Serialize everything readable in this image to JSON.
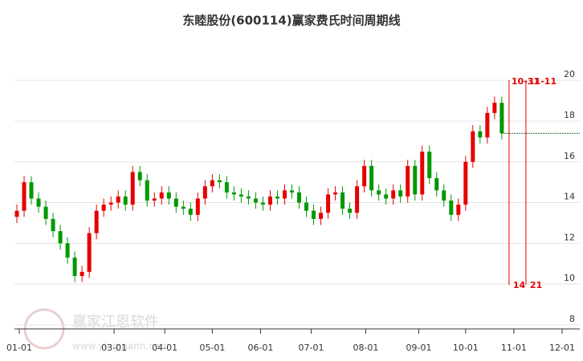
{
  "chart_data": {
    "type": "candlestick",
    "title": "东睦股份(600114)赢家费氏时间周期线",
    "x": [
      0,
      3,
      6,
      9,
      12,
      15,
      18,
      21,
      24,
      27,
      30,
      33,
      36,
      39,
      42,
      45,
      48,
      51,
      54,
      57,
      60,
      63,
      66,
      69,
      72,
      75,
      78,
      81,
      84,
      87,
      90,
      93,
      96,
      99,
      102,
      105,
      108,
      111,
      114,
      117,
      120,
      123,
      126,
      129,
      132,
      135,
      138,
      141,
      144,
      147,
      150,
      153,
      156,
      159,
      162,
      165,
      168,
      171,
      174,
      177,
      180,
      183,
      186,
      189,
      192,
      195,
      198,
      201
    ],
    "open": [
      13.3,
      13.6,
      15.0,
      14.2,
      13.8,
      13.2,
      12.6,
      12.0,
      11.3,
      10.4,
      10.6,
      12.5,
      13.6,
      13.9,
      14.0,
      14.3,
      13.9,
      15.5,
      15.1,
      14.1,
      14.2,
      14.5,
      14.2,
      13.8,
      13.7,
      13.4,
      14.2,
      14.8,
      15.1,
      15.0,
      14.5,
      14.4,
      14.3,
      14.2,
      14.0,
      13.9,
      14.3,
      14.2,
      14.6,
      14.5,
      14.0,
      13.6,
      13.2,
      13.5,
      14.4,
      14.5,
      13.7,
      13.5,
      14.8,
      15.8,
      14.6,
      14.4,
      14.2,
      14.6,
      14.3,
      15.8,
      14.4,
      16.5,
      15.2,
      14.6,
      14.1,
      13.4,
      13.9,
      16.0,
      17.5,
      17.2,
      18.4,
      18.9
    ],
    "high": [
      13.9,
      15.3,
      15.3,
      14.5,
      14.1,
      13.5,
      12.9,
      12.3,
      11.6,
      10.9,
      12.8,
      13.9,
      14.2,
      14.3,
      14.6,
      14.6,
      15.8,
      15.8,
      15.4,
      14.5,
      14.8,
      14.8,
      14.5,
      14.1,
      14.0,
      14.5,
      15.1,
      15.4,
      15.4,
      15.3,
      14.8,
      14.7,
      14.6,
      14.5,
      14.3,
      14.6,
      14.6,
      14.9,
      14.9,
      14.8,
      14.3,
      13.9,
      13.8,
      14.7,
      14.8,
      14.8,
      14.0,
      15.1,
      16.1,
      16.1,
      14.9,
      14.7,
      14.9,
      14.9,
      16.1,
      16.1,
      16.8,
      16.8,
      15.5,
      14.9,
      14.4,
      14.2,
      16.3,
      17.8,
      17.8,
      18.7,
      19.2,
      19.2
    ],
    "low": [
      13.0,
      13.3,
      13.9,
      13.5,
      12.9,
      12.3,
      11.7,
      11.0,
      10.1,
      10.1,
      10.3,
      12.2,
      13.3,
      13.6,
      13.7,
      13.6,
      13.6,
      14.8,
      13.8,
      13.8,
      13.9,
      13.9,
      13.5,
      13.4,
      13.1,
      13.1,
      13.9,
      14.5,
      14.7,
      14.2,
      14.1,
      14.0,
      13.9,
      13.7,
      13.6,
      13.6,
      13.9,
      13.9,
      14.2,
      13.7,
      13.3,
      12.9,
      12.9,
      13.2,
      14.1,
      13.4,
      13.2,
      13.2,
      14.5,
      14.3,
      14.1,
      13.9,
      13.9,
      14.0,
      14.0,
      14.1,
      14.1,
      14.9,
      14.3,
      13.8,
      13.1,
      13.1,
      13.6,
      15.7,
      16.9,
      16.9,
      18.1,
      17.1
    ],
    "close": [
      13.6,
      15.0,
      14.2,
      13.8,
      13.2,
      12.6,
      12.0,
      11.3,
      10.4,
      10.6,
      12.5,
      13.6,
      13.9,
      14.0,
      14.3,
      13.9,
      15.5,
      15.1,
      14.1,
      14.2,
      14.5,
      14.2,
      13.8,
      13.7,
      13.4,
      14.2,
      14.8,
      15.1,
      15.0,
      14.5,
      14.4,
      14.3,
      14.2,
      14.0,
      13.9,
      14.3,
      14.2,
      14.6,
      14.5,
      14.0,
      13.6,
      13.2,
      13.5,
      14.4,
      14.5,
      13.7,
      13.5,
      14.8,
      15.8,
      14.6,
      14.4,
      14.2,
      14.6,
      14.3,
      15.8,
      14.4,
      16.5,
      15.2,
      14.6,
      14.1,
      13.4,
      13.9,
      16.0,
      17.5,
      17.2,
      18.4,
      18.9,
      17.4
    ],
    "up_color": "#e60000",
    "down_color": "#009900",
    "xlim": [
      -1,
      227
    ],
    "xticks": [
      {
        "value": 1,
        "label": "01-01"
      },
      {
        "value": 40.3,
        "label": "03-01"
      },
      {
        "value": 61.3,
        "label": "04-01"
      },
      {
        "value": 81,
        "label": "05-01"
      },
      {
        "value": 101,
        "label": "06-01"
      },
      {
        "value": 122,
        "label": "07-01"
      },
      {
        "value": 144.6,
        "label": "08-01"
      },
      {
        "value": 166.6,
        "label": "09-01"
      },
      {
        "value": 186,
        "label": "10-01"
      },
      {
        "value": 206,
        "label": "11-01"
      },
      {
        "value": 226,
        "label": "12-01"
      }
    ],
    "ylim": [
      7.8,
      23
    ],
    "yticks": [
      8,
      10,
      12,
      14,
      16,
      18,
      20
    ],
    "grid": true,
    "annotations": [
      {
        "x": 204,
        "top_label": "10-31",
        "bottom_label": "14"
      },
      {
        "x": 211,
        "top_label": "11-11",
        "bottom_label": "21"
      }
    ],
    "annotation_color": "#e60000",
    "watermark": [
      "赢家江恩软件",
      "www.yingjgann.com"
    ]
  }
}
